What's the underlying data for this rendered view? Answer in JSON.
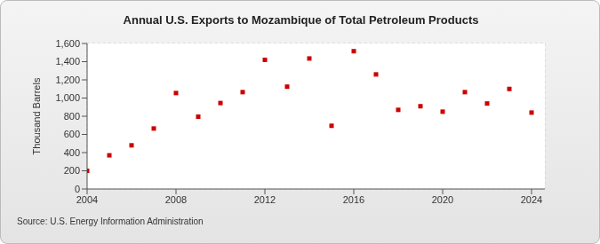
{
  "chart_data": {
    "type": "scatter",
    "title": "Annual U.S. Exports to Mozambique of Total Petroleum Products",
    "y_label": "Thousand Barrels",
    "annotations": [
      "Source: U.S. Energy Information Administration"
    ],
    "x": [
      2004,
      2005,
      2006,
      2007,
      2008,
      2009,
      2010,
      2011,
      2012,
      2013,
      2014,
      2015,
      2016,
      2017,
      2018,
      2019,
      2020,
      2021,
      2022,
      2023,
      2024
    ],
    "values": [
      200,
      370,
      480,
      665,
      1055,
      795,
      945,
      1065,
      1420,
      1125,
      1435,
      695,
      1515,
      1260,
      870,
      910,
      850,
      1065,
      940,
      1100,
      840
    ],
    "color": "#cc0000",
    "marker": "square",
    "xlim": [
      2004,
      2024.6
    ],
    "xticks": [
      2004,
      2008,
      2012,
      2016,
      2020,
      2024
    ],
    "ylim": [
      0,
      1600
    ],
    "yticks": [
      0,
      200,
      400,
      600,
      800,
      {
        "value": 1000,
        "label": "1,000"
      },
      {
        "value": 1200,
        "label": "1,200"
      },
      {
        "value": 1400,
        "label": "1,400"
      },
      {
        "value": 1600,
        "label": "1,600"
      }
    ],
    "grid": true
  }
}
